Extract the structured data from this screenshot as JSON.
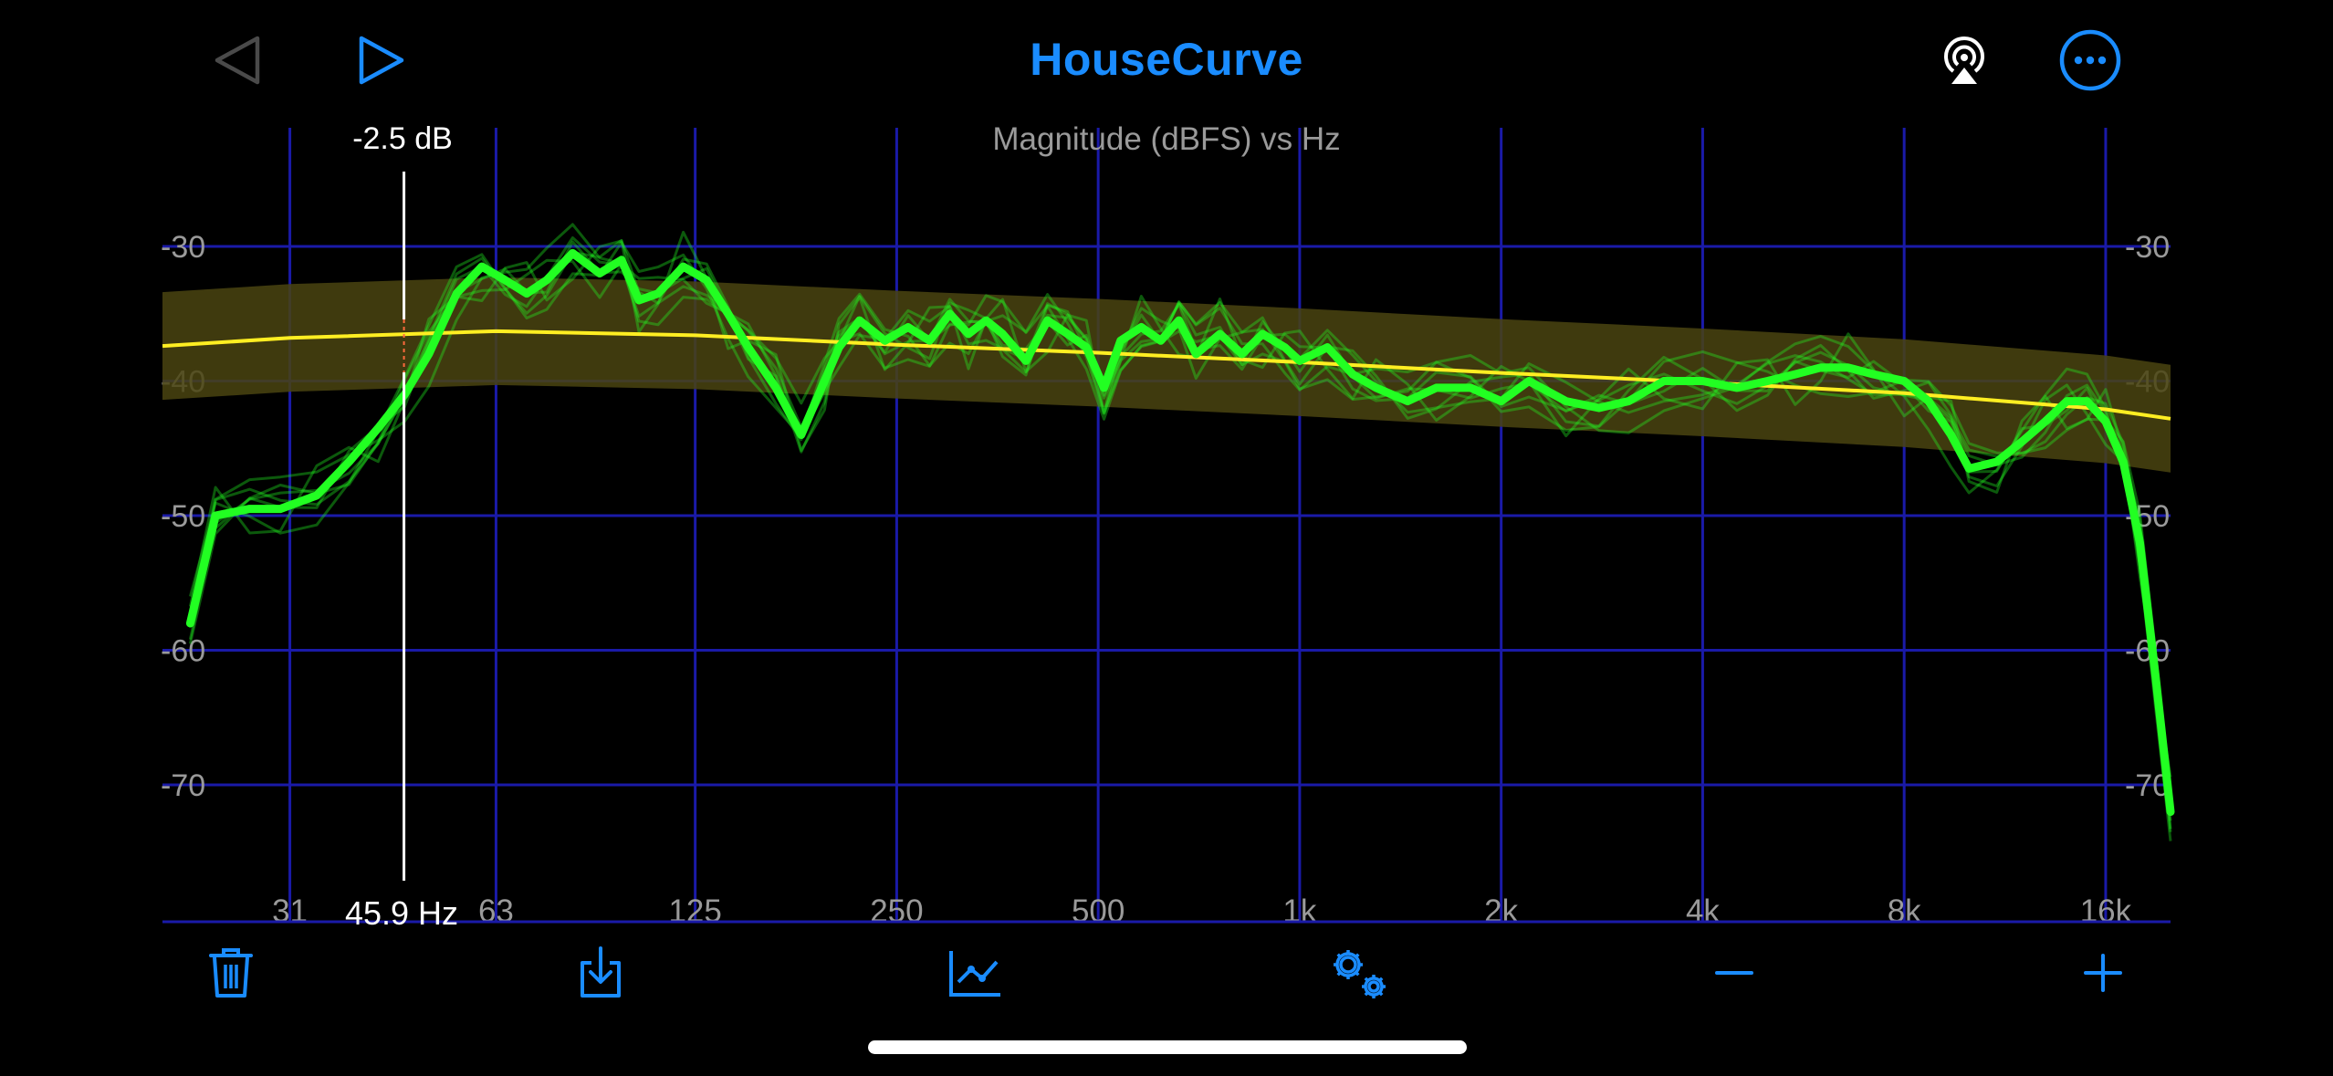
{
  "app": {
    "title": "HouseCurve",
    "accent": "#1a8cff"
  },
  "toolbar_top": {
    "back": {
      "icon": "back-triangle-icon",
      "enabled": false
    },
    "play": {
      "icon": "play-triangle-icon",
      "enabled": true
    },
    "airplay": {
      "icon": "airplay-icon"
    },
    "more": {
      "icon": "ellipsis-circle-icon"
    }
  },
  "cursor": {
    "db_label": "-2.5 dB",
    "hz_label": "45.9 Hz",
    "frequency_hz": 45.9
  },
  "chart_data": {
    "type": "line",
    "title": "Magnitude (dBFS) vs Hz",
    "x_scale": "log",
    "x_ticks": [
      "31",
      "63",
      "125",
      "250",
      "500",
      "1k",
      "2k",
      "4k",
      "8k",
      "16k"
    ],
    "y_ticks": [
      "-30",
      "-40",
      "-50",
      "-60",
      "-70"
    ],
    "ylim": [
      -80,
      -20
    ],
    "grid": true,
    "colors": {
      "background": "#000000",
      "grid": "#1a1aa8",
      "measurement": "#22ff22",
      "target": "#ffee22",
      "target_band": "#4a4410"
    },
    "series": [
      {
        "kind": "target",
        "x": [
          20,
          31,
          63,
          125,
          250,
          500,
          1000,
          2000,
          4000,
          8000,
          16000,
          20000
        ],
        "y": [
          -37.4,
          -36.8,
          -36.3,
          -36.6,
          -37.3,
          -37.9,
          -38.6,
          -39.4,
          -40.1,
          -40.9,
          -42.1,
          -42.8
        ],
        "band": 4
      },
      {
        "kind": "average",
        "x": [
          22,
          24,
          27,
          30,
          34,
          38,
          42,
          46,
          50,
          55,
          60,
          65,
          70,
          75,
          82,
          90,
          97,
          103,
          110,
          120,
          130,
          140,
          150,
          165,
          180,
          195,
          205,
          220,
          240,
          260,
          280,
          300,
          320,
          340,
          360,
          390,
          420,
          450,
          480,
          510,
          540,
          580,
          620,
          660,
          700,
          760,
          820,
          880,
          950,
          1000,
          1100,
          1200,
          1300,
          1450,
          1600,
          1800,
          2000,
          2200,
          2500,
          2800,
          3100,
          3500,
          4000,
          4500,
          5000,
          5500,
          6000,
          6600,
          7200,
          8000,
          8700,
          9400,
          10000,
          11000,
          12000,
          13000,
          14000,
          15000,
          16000,
          17000,
          18000,
          19000,
          20000
        ],
        "y": [
          -58,
          -50,
          -49.5,
          -49.5,
          -48.5,
          -46,
          -43.5,
          -41,
          -38,
          -33.5,
          -31.5,
          -32.5,
          -33.5,
          -32.5,
          -30.5,
          -32,
          -31,
          -34,
          -33.5,
          -31.5,
          -32.5,
          -35,
          -37.5,
          -40.5,
          -44,
          -40,
          -37.5,
          -35.5,
          -37,
          -36,
          -37,
          -35,
          -36.5,
          -35.5,
          -36.5,
          -38.5,
          -35.5,
          -36.5,
          -37.5,
          -40.5,
          -37,
          -36,
          -37,
          -35.5,
          -38,
          -36.5,
          -38,
          -36.5,
          -37.5,
          -38.5,
          -37.5,
          -39.5,
          -40.5,
          -41.5,
          -40.5,
          -40.5,
          -41.5,
          -40,
          -41.5,
          -42,
          -41.5,
          -40,
          -40,
          -40.5,
          -40,
          -39.5,
          -39,
          -39,
          -39.5,
          -40,
          -41.5,
          -44,
          -46.5,
          -46,
          -44.5,
          -43,
          -41.5,
          -41.5,
          -43,
          -46,
          -52,
          -62,
          -72
        ]
      }
    ]
  },
  "toolbar_bottom": {
    "items": [
      {
        "icon": "trash-icon"
      },
      {
        "icon": "download-icon"
      },
      {
        "icon": "line-chart-icon"
      },
      {
        "icon": "gears-icon"
      },
      {
        "icon": "minus-icon"
      },
      {
        "icon": "plus-icon"
      }
    ]
  }
}
